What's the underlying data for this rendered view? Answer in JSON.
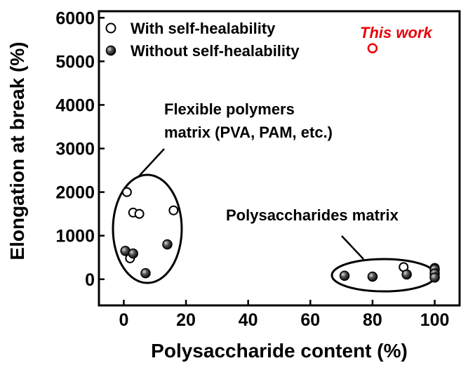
{
  "chart_data": {
    "type": "scatter",
    "xlabel": "Polysaccharide content (%)",
    "ylabel": "Elongation at break (%)",
    "xlim": [
      -8,
      108
    ],
    "ylim": [
      -600,
      6150
    ],
    "xticks": [
      0,
      20,
      40,
      60,
      80,
      100
    ],
    "yticks": [
      0,
      1000,
      2000,
      3000,
      4000,
      5000,
      6000
    ],
    "x_tick_labels": [
      "0",
      "20",
      "40",
      "60",
      "80",
      "100"
    ],
    "y_tick_labels": [
      "0",
      "1000",
      "2000",
      "3000",
      "4000",
      "5000",
      "6000"
    ],
    "grid": false,
    "legend_position": "top-left",
    "series": [
      {
        "name": "With self-healability",
        "marker": "open-circle",
        "color": "#000000",
        "points": [
          {
            "x": 1,
            "y": 2000
          },
          {
            "x": 3,
            "y": 1530
          },
          {
            "x": 5,
            "y": 1500
          },
          {
            "x": 16,
            "y": 1580
          },
          {
            "x": 2,
            "y": 480
          },
          {
            "x": 90,
            "y": 280
          },
          {
            "x": 100,
            "y": 260
          },
          {
            "x": 100,
            "y": 170
          },
          {
            "x": 100,
            "y": 80
          }
        ]
      },
      {
        "name": "Without self-healability",
        "marker": "filled-circle",
        "color": "#000000",
        "points": [
          {
            "x": 0.5,
            "y": 650
          },
          {
            "x": 3,
            "y": 590
          },
          {
            "x": 7,
            "y": 140
          },
          {
            "x": 14,
            "y": 800
          },
          {
            "x": 71,
            "y": 80
          },
          {
            "x": 80,
            "y": 60
          },
          {
            "x": 91,
            "y": 110
          },
          {
            "x": 100,
            "y": 230
          },
          {
            "x": 100,
            "y": 130
          },
          {
            "x": 100,
            "y": 40
          }
        ]
      },
      {
        "name": "This work",
        "marker": "open-circle",
        "color": "#e8000b",
        "points": [
          {
            "x": 80,
            "y": 5300
          }
        ]
      }
    ],
    "annotations": [
      {
        "text_lines": [
          "Flexible polymers",
          "matrix (PVA, PAM, etc.)"
        ],
        "target": "ellipse-low-polysaccharide"
      },
      {
        "text_lines": [
          "Polysaccharides matrix"
        ],
        "target": "ellipse-high-polysaccharide"
      },
      {
        "text_lines": [
          "This work"
        ],
        "color": "#e8000b"
      }
    ]
  }
}
